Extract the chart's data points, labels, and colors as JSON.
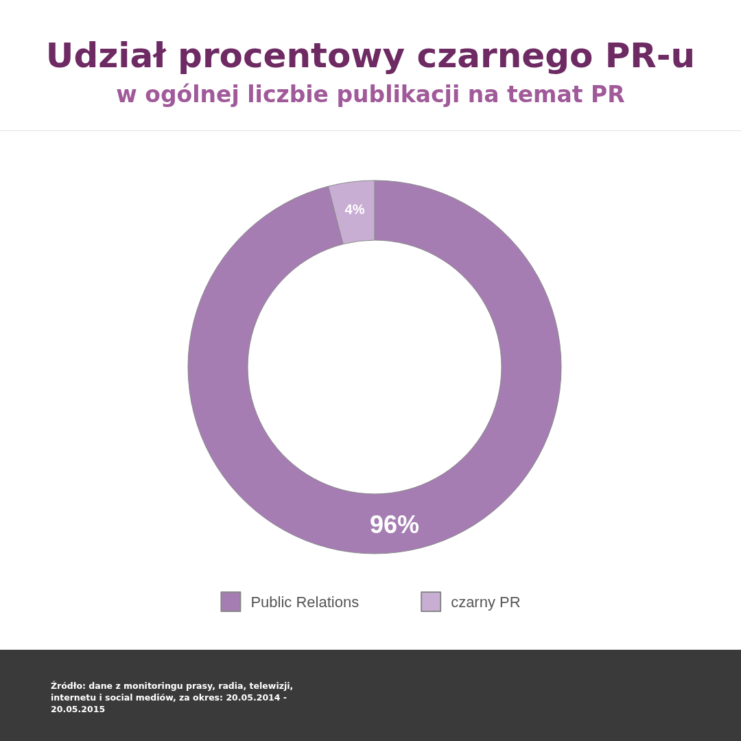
{
  "chart_data": {
    "type": "donut",
    "title": "Udział procentowy czarnego PR-u",
    "subtitle": "w ogólnej liczbie publikacji na temat PR",
    "categories": [
      "Public Relations",
      "czarny PR"
    ],
    "values": [
      96,
      4
    ],
    "colors": [
      "#a57db3",
      "#c9aed4"
    ],
    "value_labels": [
      "96%",
      "4%"
    ],
    "legend": "bottom",
    "annotations": [
      "Źródło: dane z monitoringu prasy, radia, telewizji, internetu i social mediów, za okres: 20.05.2014 - 20.05.2015"
    ]
  }
}
